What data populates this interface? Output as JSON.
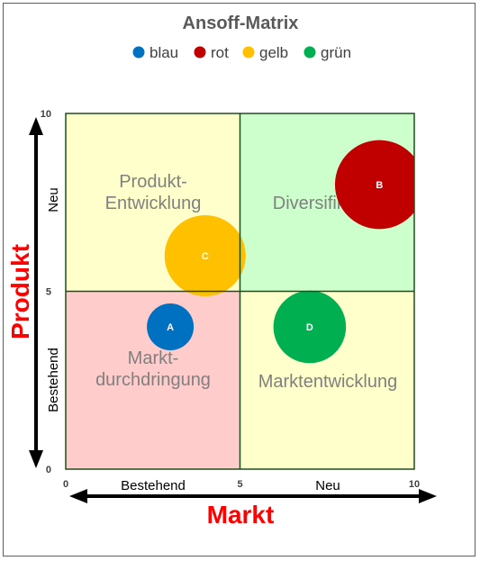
{
  "chart_data": {
    "type": "bubble",
    "title": "Ansoff-Matrix",
    "xlabel": "Markt",
    "ylabel": "Produkt",
    "xlim": [
      0,
      10
    ],
    "ylim": [
      0,
      10
    ],
    "x_ticks": [
      "0",
      "5",
      "10"
    ],
    "y_ticks": [
      "0",
      "5",
      "10"
    ],
    "x_categories": [
      "Bestehend",
      "Neu"
    ],
    "y_categories": [
      "Bestehend",
      "Neu"
    ],
    "legend": [
      {
        "name": "blau",
        "color": "#0070c0"
      },
      {
        "name": "rot",
        "color": "#c00000"
      },
      {
        "name": "gelb",
        "color": "#ffc000"
      },
      {
        "name": "grün",
        "color": "#00b050"
      }
    ],
    "quadrants": [
      {
        "text": "Produkt-\nEntwicklung",
        "color": "#ffffcc"
      },
      {
        "text": "Diversifikation",
        "color": "#ccffcc"
      },
      {
        "text": "Markt-\ndurchdringung",
        "color": "#ffcccc"
      },
      {
        "text": "Marktentwicklung",
        "color": "#ffffcc"
      }
    ],
    "points": [
      {
        "label": "A",
        "x": 3.0,
        "y": 4.0,
        "size": 1.0,
        "color": "#0070c0"
      },
      {
        "label": "B",
        "x": 9.0,
        "y": 8.0,
        "size": 3.6,
        "color": "#c00000"
      },
      {
        "label": "C",
        "x": 4.0,
        "y": 6.0,
        "size": 3.0,
        "color": "#ffc000"
      },
      {
        "label": "D",
        "x": 7.0,
        "y": 4.0,
        "size": 2.4,
        "color": "#00b050"
      }
    ]
  }
}
